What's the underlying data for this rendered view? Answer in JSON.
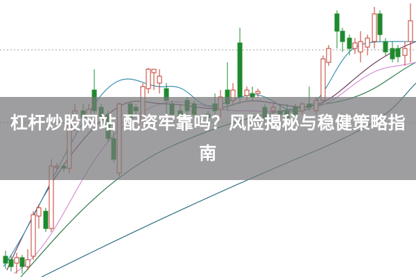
{
  "article": {
    "title": "杠杆炒股网站 配资牢靠吗？风险揭秘与稳健策略指南"
  },
  "image": {
    "subject": "candlestick-chart-background",
    "colors": {
      "up": "#c0392b",
      "down": "#1e8a2e",
      "ma_short": "#3a8fb0",
      "ma_mid": "#6a3a5a",
      "ma_long": "#2e7a4a",
      "ma_pink": "#d68fd6",
      "ma_teal": "#2d6f7f",
      "banner": "#78787c"
    }
  }
}
